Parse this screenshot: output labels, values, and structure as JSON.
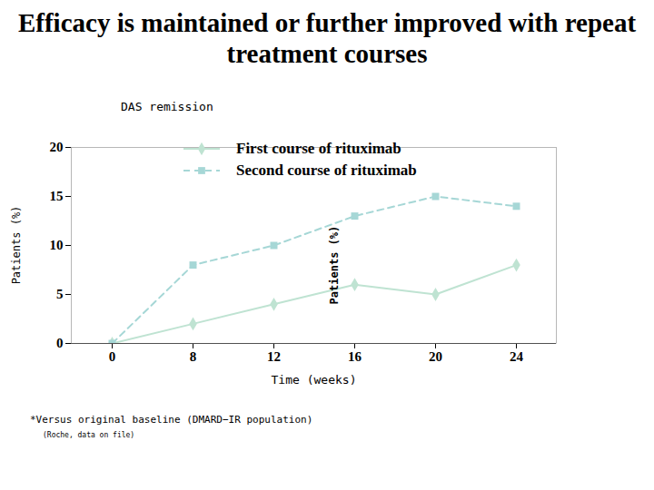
{
  "chart_data": {
    "type": "line",
    "title": "Efficacy is maintained or further improved with repeat treatment courses",
    "subtitle": "DAS remission",
    "xlabel": "Time (weeks)",
    "ylabel": "Patients (%)",
    "categories": [
      "0",
      "8",
      "12",
      "16",
      "20",
      "24"
    ],
    "series": [
      {
        "name": "First course of rituximab",
        "color": "#bfe3d2",
        "marker": "diamond",
        "line_style": "solid",
        "values": [
          0,
          2,
          4,
          6,
          5,
          8
        ]
      },
      {
        "name": "Second course of rituximab",
        "color": "#a6d7d6",
        "marker": "square",
        "line_style": "dashed",
        "values": [
          0,
          8,
          10,
          13,
          15,
          14
        ]
      }
    ],
    "ylim": [
      0,
      20
    ],
    "yticks": [
      0,
      5,
      10,
      15,
      20
    ],
    "grid": false,
    "legend": "top",
    "annotations": [
      {
        "text": "Patients (%)",
        "x": "16",
        "y": 8
      }
    ],
    "notes": [
      "*Versus original baseline (DMARD−IR population)",
      "(Roche, data on file)"
    ]
  }
}
